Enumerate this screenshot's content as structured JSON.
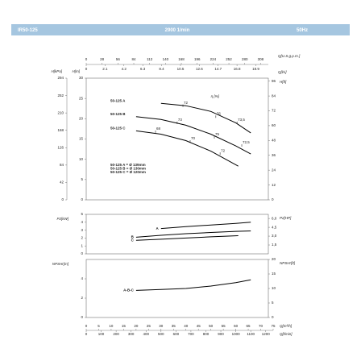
{
  "header": {
    "model": "IR50-125",
    "speed": "2900 1/min",
    "frequency": "50Hz"
  },
  "chart_data": [
    {
      "type": "line",
      "xlim": [
        0,
        75
      ],
      "top_axes": [
        {
          "label": "Q[U.S.g.p.m.]",
          "lim": [
            0,
            330.2
          ],
          "ticks": [
            0,
            28,
            56,
            84,
            112,
            140,
            168,
            196,
            224,
            252,
            280,
            308
          ]
        },
        {
          "label": "Q[l/s]",
          "lim": [
            0,
            20.83
          ],
          "ticks": [
            0,
            2.1,
            4.2,
            6.3,
            8.4,
            10.5,
            12.6,
            14.7,
            16.8,
            18.9
          ]
        }
      ],
      "y_label": "H[m]",
      "ylim": [
        0,
        30
      ],
      "yticks": [
        0,
        5,
        10,
        15,
        20,
        25,
        30
      ],
      "y3_label": "H[kPa]",
      "y3lim": [
        0,
        294
      ],
      "y3ticks": [
        0,
        42,
        84,
        126,
        168,
        210,
        252,
        294
      ],
      "y2_label": "H[ft]",
      "y2lim": [
        0,
        98.4
      ],
      "y2ticks": [
        0,
        12,
        24,
        36,
        48,
        60,
        72,
        84,
        96
      ],
      "series": [
        {
          "name": "50-125 A",
          "color": "#000000",
          "x": [
            30,
            40,
            50,
            60,
            66
          ],
          "values": [
            23.8,
            23.2,
            21.8,
            19,
            16.5
          ]
        },
        {
          "name": "50-125 B",
          "color": "#000000",
          "x": [
            20,
            30,
            40,
            50,
            60,
            66
          ],
          "values": [
            20.5,
            19.8,
            18.4,
            16.2,
            13.3,
            11.3
          ]
        },
        {
          "name": "50-125 C",
          "color": "#000000",
          "x": [
            20,
            30,
            40,
            50,
            61
          ],
          "values": [
            17,
            16.2,
            14.6,
            12,
            8.3
          ]
        }
      ],
      "efficiency": {
        "label": "η [%]",
        "values": [
          72,
          76,
          73.5,
          73,
          75,
          72.5,
          68,
          70,
          72
        ],
        "value_labels": [
          "72",
          "76",
          "73,5",
          "73",
          "75",
          "72,5",
          "68",
          "70",
          "72"
        ],
        "x": [
          38.8,
          52,
          60.5,
          36.5,
          51.4,
          62.4,
          27.8,
          41.7,
          53.7
        ],
        "y": [
          23.7,
          21,
          19.5,
          19.5,
          15.9,
          13.9,
          17.3,
          14.9,
          11.9
        ]
      },
      "notes": [
        "50-125 A = Ø 139mm",
        "50-125 B = Ø 130mm",
        "50-125 C = Ø 120mm"
      ]
    },
    {
      "type": "line",
      "xlim": [
        0,
        75
      ],
      "y_label": "P2[kW]",
      "ylim": [
        0,
        5
      ],
      "yticks": [
        0,
        1,
        2,
        3,
        4,
        5
      ],
      "y2_label": "P2[HP]",
      "y2lim": [
        0,
        6.7
      ],
      "y2ticks": [
        {
          "value": 1.5,
          "label": "1,5"
        },
        {
          "value": 3,
          "label": "3,0"
        },
        {
          "value": 4.5,
          "label": "4,5"
        },
        {
          "value": 6,
          "label": "6,0"
        }
      ],
      "series": [
        {
          "name": "A",
          "color": "#000000",
          "x": [
            30,
            40,
            50,
            60,
            66
          ],
          "values": [
            3.2,
            3.45,
            3.65,
            3.85,
            4.0
          ]
        },
        {
          "name": "B",
          "color": "#000000",
          "x": [
            20,
            30,
            40,
            50,
            60,
            66
          ],
          "values": [
            2.1,
            2.35,
            2.55,
            2.7,
            2.85,
            2.9
          ]
        },
        {
          "name": "C",
          "color": "#000000",
          "x": [
            20,
            30,
            40,
            50,
            61
          ],
          "values": [
            1.7,
            1.85,
            2.0,
            2.15,
            2.3
          ]
        }
      ]
    },
    {
      "type": "line",
      "xlim": [
        0,
        75
      ],
      "x_label": "Q[m³/h]",
      "xticks": [
        0,
        5,
        10,
        15,
        20,
        25,
        30,
        35,
        40,
        45,
        50,
        55,
        60,
        65,
        70,
        75
      ],
      "x2_label": "Q[l/min]",
      "x2lim": [
        0,
        1250
      ],
      "x2ticks": [
        0,
        100,
        200,
        300,
        400,
        500,
        600,
        700,
        800,
        900,
        1000,
        1100,
        1200
      ],
      "y_label": "NPSHr[m]",
      "ylim": [
        0,
        6
      ],
      "yticks": [
        0,
        2,
        4
      ],
      "y2_label": "NPSHr[ft]",
      "y2lim": [
        0,
        20
      ],
      "y2ticks": [
        0,
        5,
        10,
        15,
        20
      ],
      "series": [
        {
          "name": "A-B-C",
          "color": "#000000",
          "x": [
            20,
            30,
            40,
            50,
            60,
            66
          ],
          "values": [
            2.8,
            2.9,
            3.0,
            3.25,
            3.6,
            3.9
          ]
        }
      ]
    }
  ]
}
